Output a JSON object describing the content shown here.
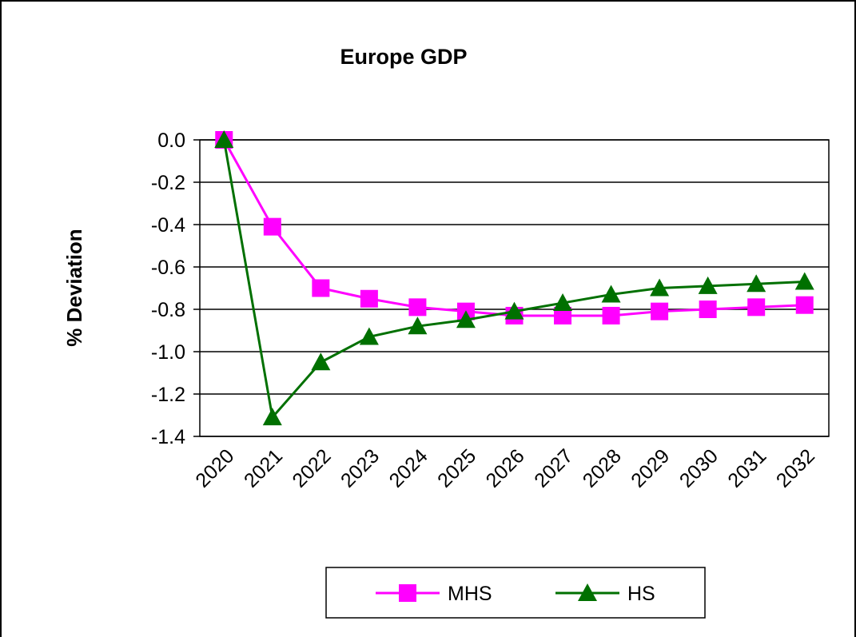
{
  "chart_data": {
    "type": "line",
    "title": "Europe GDP",
    "y_label": "% Deviation",
    "categories": [
      "2020",
      "2021",
      "2022",
      "2023",
      "2024",
      "2025",
      "2026",
      "2027",
      "2028",
      "2029",
      "2030",
      "2031",
      "2032"
    ],
    "series": [
      {
        "name": "MHS",
        "color": "#ff00ff",
        "marker": "square",
        "values": [
          0,
          -0.41,
          -0.7,
          -0.75,
          -0.79,
          -0.81,
          -0.83,
          -0.83,
          -0.83,
          -0.81,
          -0.8,
          -0.79,
          -0.78
        ]
      },
      {
        "name": "HS",
        "color": "#007000",
        "marker": "triangle",
        "values": [
          0,
          -1.31,
          -1.05,
          -0.93,
          -0.88,
          -0.85,
          -0.81,
          -0.77,
          -0.73,
          -0.7,
          -0.69,
          -0.68,
          -0.67
        ]
      }
    ],
    "ylim": [
      -1.4,
      0
    ],
    "yticks": [
      {
        "value": 0,
        "label": "0.0"
      },
      -0.2,
      -0.4,
      -0.6,
      -0.8,
      {
        "value": -1.0,
        "label": "-1.0"
      },
      -1.2,
      -1.4
    ],
    "grid": true,
    "legend": "bottom"
  }
}
